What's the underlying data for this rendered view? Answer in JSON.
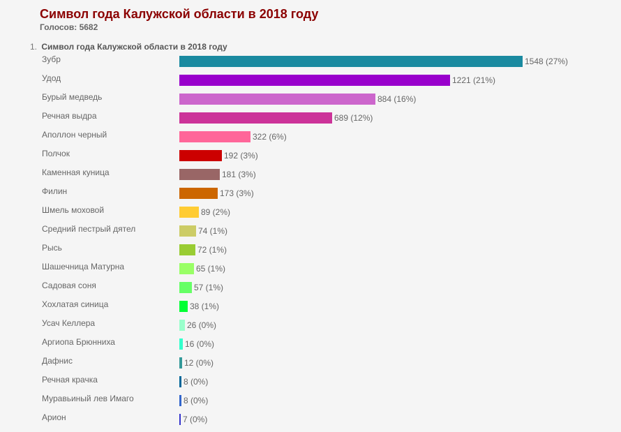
{
  "poll": {
    "title": "Символ года Калужской области в 2018 году",
    "votes_label": "Голосов: 5682",
    "question_number": "1.",
    "question_text": "Символ года Калужской области в 2018 году"
  },
  "chart_data": {
    "type": "bar",
    "orientation": "horizontal",
    "categories": [
      "Зубр",
      "Удод",
      "Бурый медведь",
      "Речная выдра",
      "Аполлон черный",
      "Полчок",
      "Каменная куница",
      "Филин",
      "Шмель моховой",
      "Средний пестрый дятел",
      "Рысь",
      "Шашечница Матурна",
      "Садовая соня",
      "Хохлатая синица",
      "Усач Келлера",
      "Аргиопа Брюнниха",
      "Дафнис",
      "Речная крачка",
      "Муравьиный лев Имаго",
      "Арион"
    ],
    "values": [
      1548,
      1221,
      884,
      689,
      322,
      192,
      181,
      173,
      89,
      74,
      72,
      65,
      57,
      38,
      26,
      16,
      12,
      8,
      8,
      7
    ],
    "value_labels": [
      "1548 (27%)",
      "1221 (21%)",
      "884 (16%)",
      "689 (12%)",
      "322 (6%)",
      "192 (3%)",
      "181 (3%)",
      "173 (3%)",
      "89 (2%)",
      "74 (1%)",
      "72 (1%)",
      "65 (1%)",
      "57 (1%)",
      "38 (1%)",
      "26 (0%)",
      "16 (0%)",
      "12 (0%)",
      "8 (0%)",
      "8 (0%)",
      "7 (0%)"
    ],
    "colors": [
      "#1a8aa0",
      "#9900cc",
      "#cc66cc",
      "#cc3399",
      "#ff6699",
      "#cc0000",
      "#996666",
      "#cc6600",
      "#ffcc33",
      "#cccc66",
      "#99cc33",
      "#99ff66",
      "#66ff66",
      "#00ff33",
      "#99ffcc",
      "#33ffcc",
      "#339999",
      "#006699",
      "#3366cc",
      "#3333cc"
    ],
    "title": "",
    "xlabel": "",
    "ylabel": "",
    "xlim": [
      0,
      1548
    ],
    "grid": false,
    "legend": "none"
  }
}
